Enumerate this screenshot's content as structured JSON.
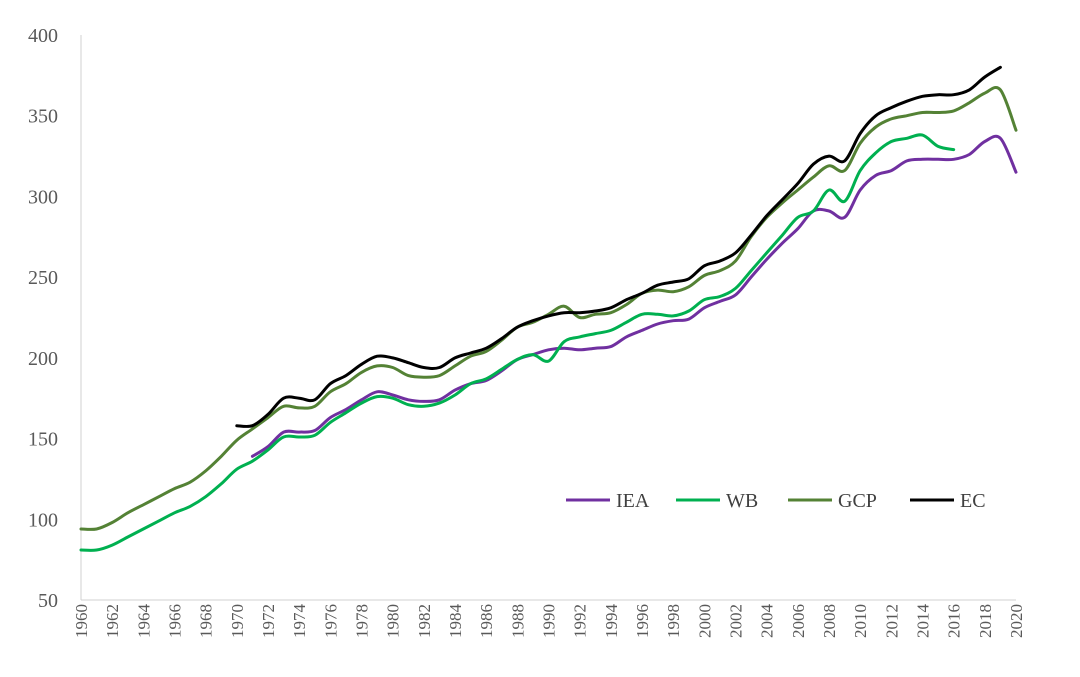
{
  "chart_data": {
    "type": "line",
    "title": "",
    "xlabel": "",
    "ylabel": "",
    "xlim": [
      1960,
      2020
    ],
    "ylim": [
      50,
      400
    ],
    "y_ticks": [
      "50",
      "100",
      "150",
      "200",
      "250",
      "300",
      "350",
      "400"
    ],
    "x_ticks": [
      "1960",
      "1962",
      "1964",
      "1966",
      "1968",
      "1970",
      "1972",
      "1974",
      "1976",
      "1978",
      "1980",
      "1982",
      "1984",
      "1986",
      "1988",
      "1990",
      "1992",
      "1994",
      "1996",
      "1998",
      "2000",
      "2002",
      "2004",
      "2006",
      "2008",
      "2010",
      "2012",
      "2014",
      "2016",
      "2018",
      "2020"
    ],
    "grid": false,
    "legend_position": "bottom-right",
    "series": [
      {
        "name": "IEA",
        "color": "#7030a0",
        "x": [
          1971,
          1972,
          1973,
          1974,
          1975,
          1976,
          1977,
          1978,
          1979,
          1980,
          1981,
          1982,
          1983,
          1984,
          1985,
          1986,
          1987,
          1988,
          1989,
          1990,
          1991,
          1992,
          1993,
          1994,
          1995,
          1996,
          1997,
          1998,
          1999,
          2000,
          2001,
          2002,
          2003,
          2004,
          2005,
          2006,
          2007,
          2008,
          2009,
          2010,
          2011,
          2012,
          2013,
          2014,
          2015,
          2016,
          2017,
          2018,
          2019,
          2020
        ],
        "values": [
          139,
          145,
          154,
          154,
          155,
          163,
          168,
          174,
          179,
          177,
          174,
          173,
          174,
          180,
          184,
          186,
          192,
          199,
          202,
          205,
          206,
          205,
          206,
          207,
          213,
          217,
          221,
          223,
          224,
          231,
          235,
          239,
          250,
          261,
          271,
          280,
          291,
          291,
          287,
          304,
          313,
          316,
          322,
          323,
          323,
          323,
          326,
          334,
          336,
          315
        ]
      },
      {
        "name": "WB",
        "color": "#00b050",
        "x": [
          1960,
          1961,
          1962,
          1963,
          1964,
          1965,
          1966,
          1967,
          1968,
          1969,
          1970,
          1971,
          1972,
          1973,
          1974,
          1975,
          1976,
          1977,
          1978,
          1979,
          1980,
          1981,
          1982,
          1983,
          1984,
          1985,
          1986,
          1987,
          1988,
          1989,
          1990,
          1991,
          1992,
          1993,
          1994,
          1995,
          1996,
          1997,
          1998,
          1999,
          2000,
          2001,
          2002,
          2003,
          2004,
          2005,
          2006,
          2007,
          2008,
          2009,
          2010,
          2011,
          2012,
          2013,
          2014,
          2015,
          2016
        ],
        "values": [
          81,
          81,
          84,
          89,
          94,
          99,
          104,
          108,
          114,
          122,
          131,
          136,
          143,
          151,
          151,
          152,
          160,
          166,
          172,
          176,
          175,
          171,
          170,
          172,
          177,
          184,
          187,
          193,
          199,
          202,
          198,
          210,
          213,
          215,
          217,
          222,
          227,
          227,
          226,
          229,
          236,
          238,
          243,
          254,
          265,
          276,
          287,
          291,
          304,
          297,
          316,
          327,
          334,
          336,
          338,
          331,
          329
        ]
      },
      {
        "name": "GCP",
        "color": "#548235",
        "x": [
          1960,
          1961,
          1962,
          1963,
          1964,
          1965,
          1966,
          1967,
          1968,
          1969,
          1970,
          1971,
          1972,
          1973,
          1974,
          1975,
          1976,
          1977,
          1978,
          1979,
          1980,
          1981,
          1982,
          1983,
          1984,
          1985,
          1986,
          1987,
          1988,
          1989,
          1990,
          1991,
          1992,
          1993,
          1994,
          1995,
          1996,
          1997,
          1998,
          1999,
          2000,
          2001,
          2002,
          2003,
          2004,
          2005,
          2006,
          2007,
          2008,
          2009,
          2010,
          2011,
          2012,
          2013,
          2014,
          2015,
          2016,
          2017,
          2018,
          2019,
          2020
        ],
        "values": [
          94,
          94,
          98,
          104,
          109,
          114,
          119,
          123,
          130,
          139,
          149,
          156,
          163,
          170,
          169,
          170,
          179,
          184,
          191,
          195,
          194,
          189,
          188,
          189,
          195,
          201,
          204,
          211,
          219,
          222,
          227,
          232,
          225,
          227,
          228,
          233,
          240,
          242,
          241,
          244,
          251,
          254,
          260,
          275,
          287,
          296,
          304,
          312,
          319,
          316,
          333,
          343,
          348,
          350,
          352,
          352,
          353,
          358,
          364,
          366,
          341
        ]
      },
      {
        "name": "EC",
        "color": "#000000",
        "x": [
          1970,
          1971,
          1972,
          1973,
          1974,
          1975,
          1976,
          1977,
          1978,
          1979,
          1980,
          1981,
          1982,
          1983,
          1984,
          1985,
          1986,
          1987,
          1988,
          1989,
          1990,
          1991,
          1992,
          1993,
          1994,
          1995,
          1996,
          1997,
          1998,
          1999,
          2000,
          2001,
          2002,
          2003,
          2004,
          2005,
          2006,
          2007,
          2008,
          2009,
          2010,
          2011,
          2012,
          2013,
          2014,
          2015,
          2016,
          2017,
          2018,
          2019
        ],
        "values": [
          158,
          158,
          165,
          175,
          175,
          174,
          184,
          189,
          196,
          201,
          200,
          197,
          194,
          194,
          200,
          203,
          206,
          212,
          219,
          223,
          226,
          228,
          228,
          229,
          231,
          236,
          240,
          245,
          247,
          249,
          257,
          260,
          265,
          276,
          288,
          298,
          308,
          320,
          325,
          322,
          339,
          350,
          355,
          359,
          362,
          363,
          363,
          366,
          374,
          380
        ]
      }
    ]
  }
}
